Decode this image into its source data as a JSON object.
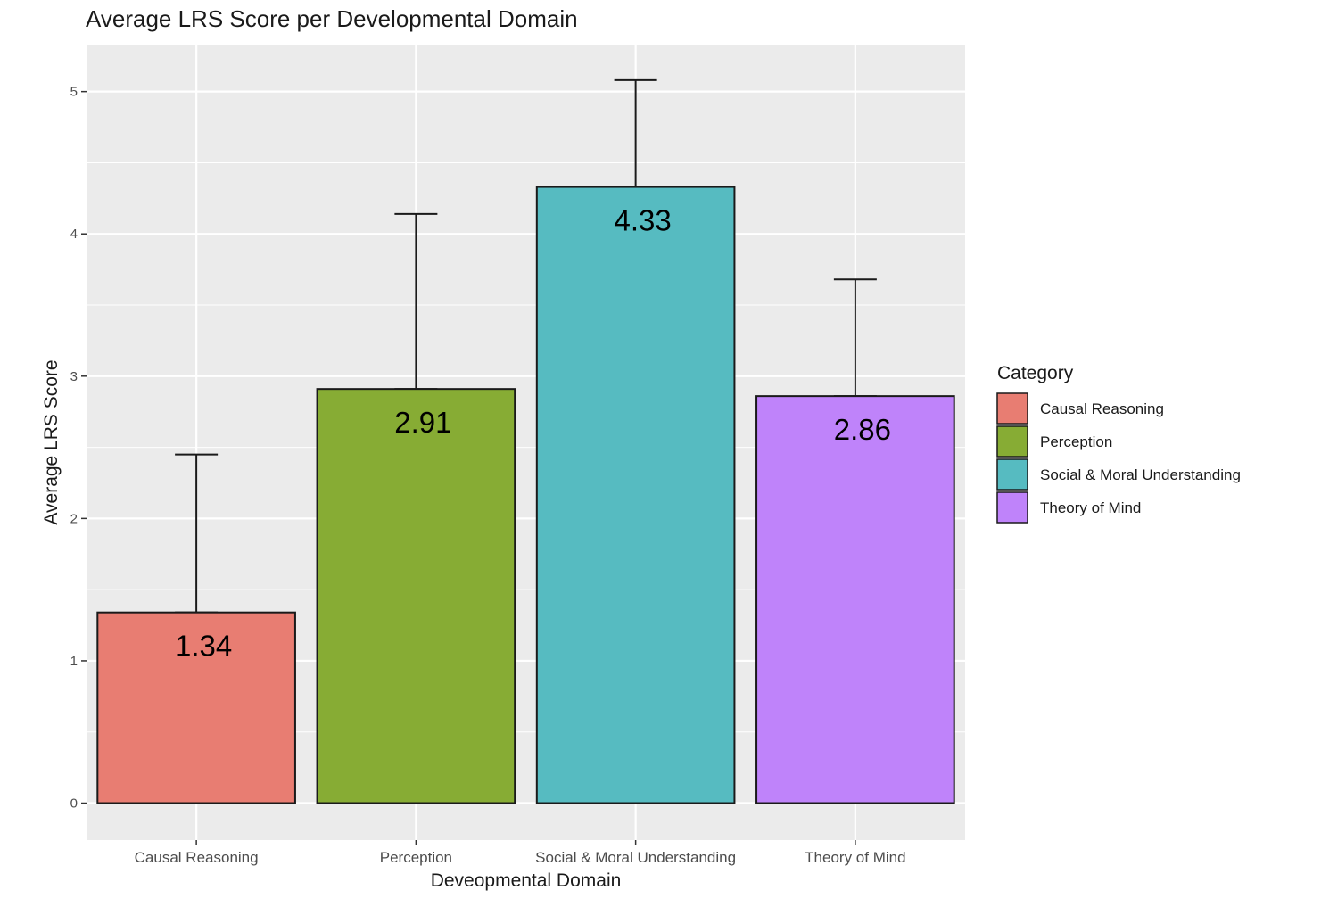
{
  "chart_data": {
    "type": "bar",
    "title": "Average LRS Score per Developmental Domain",
    "xlabel": "Deveopmental Domain",
    "ylabel": "Average LRS Score",
    "categories": [
      "Causal Reasoning",
      "Perception",
      "Social & Moral Understanding",
      "Theory of Mind"
    ],
    "values": [
      1.34,
      2.91,
      4.33,
      2.86
    ],
    "value_labels": [
      "1.34",
      "2.91",
      "4.33",
      "2.86"
    ],
    "error_upper": [
      2.45,
      4.14,
      5.08,
      3.68
    ],
    "error_lower": [
      1.34,
      2.91,
      4.33,
      2.86
    ],
    "ylim": [
      -0.26,
      5.33
    ],
    "yticks": [
      0,
      1,
      2,
      3,
      4,
      5
    ],
    "ytick_labels": [
      "0",
      "1",
      "2",
      "3",
      "4",
      "5"
    ],
    "grid": true,
    "legend": {
      "title": "Category",
      "position": "right",
      "entries": [
        "Causal Reasoning",
        "Perception",
        "Social & Moral Understanding",
        "Theory of Mind"
      ]
    },
    "colors": [
      "#E87D72",
      "#87AC34",
      "#56BBC1",
      "#BF83FA"
    ],
    "panel_background": "#EBEBEB",
    "grid_color": "#FFFFFF"
  }
}
